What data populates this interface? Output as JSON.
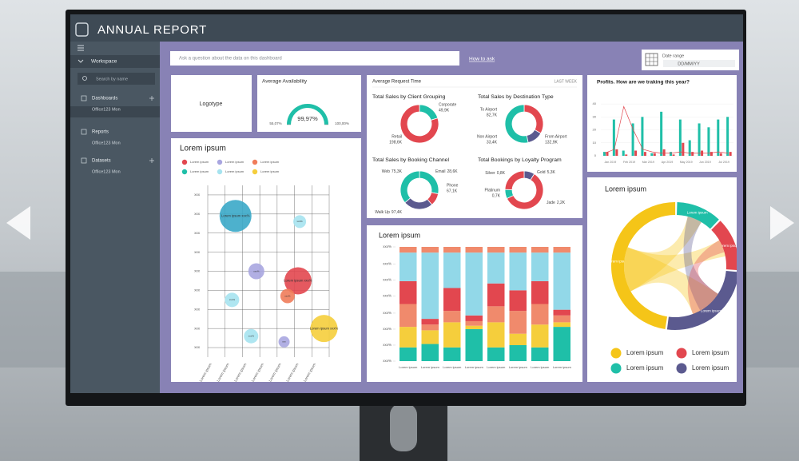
{
  "header": {
    "title": "ANNUAL REPORT"
  },
  "sidebar": {
    "workspace": "Workspace",
    "search": "Search by name",
    "sections": [
      {
        "title": "Dashboards",
        "item": "Office123 Mon"
      },
      {
        "title": "Reports",
        "item": "Office123 Mon"
      },
      {
        "title": "Datasets",
        "item": "Office123 Mon"
      }
    ]
  },
  "toolbar": {
    "question": "Ask a question about the data on this dashboard",
    "how_to_ask": "How to ask",
    "date_label": "Date range",
    "date_value": "DD/MM/YY"
  },
  "logo": "Logotype",
  "availability": {
    "title": "Average Availability",
    "value": 99.97,
    "value_label": "99,97%",
    "min": 55.07,
    "min_label": "55,07%",
    "max": 100,
    "max_label": "100,00%",
    "color": "#1fbfa8"
  },
  "request_time": {
    "title": "Average Request Time",
    "period": "LAST WEEK",
    "donuts": [
      {
        "title": "Total Sales by Client Grouping",
        "slices": [
          {
            "label": "Corporate",
            "value": 49.9,
            "value_label": "49,9K",
            "color": "#1fbfa8"
          },
          {
            "label": "Retail",
            "value": 198.6,
            "value_label": "198,6K",
            "color": "#e2474f"
          }
        ]
      },
      {
        "title": "Total Sales by Destination Type",
        "slices": [
          {
            "label": "To Airport",
            "value": 82.7,
            "value_label": "82,7K",
            "color": "#e2474f"
          },
          {
            "label": "Non Airport",
            "value": 33.4,
            "value_label": "33,4K",
            "color": "#5b5a8f"
          },
          {
            "label": "From Airport",
            "value": 132.9,
            "value_label": "132,9K",
            "color": "#1fbfa8"
          }
        ]
      },
      {
        "title": "Total Sales by Booking Channel",
        "slices": [
          {
            "label": "Web",
            "value": 75.3,
            "value_label": "75,3K",
            "color": "#1fbfa8"
          },
          {
            "label": "Email",
            "value": 28.6,
            "value_label": "28,6K",
            "color": "#e2474f"
          },
          {
            "label": "Phone",
            "value": 67.1,
            "value_label": "67,1K",
            "color": "#5b5a8f"
          },
          {
            "label": "Walk Up",
            "value": 97.4,
            "value_label": "97,4K",
            "color": "#1fbfa8"
          }
        ]
      },
      {
        "title": "Total Bookings by Loyalty Program",
        "slices": [
          {
            "label": "Silver",
            "value": 0.8,
            "value_label": "0,8K",
            "color": "#5b5a8f"
          },
          {
            "label": "Gold",
            "value": 5.3,
            "value_label": "5,3K",
            "color": "#e2474f"
          },
          {
            "label": "Platinum",
            "value": 0.7,
            "value_label": "0,7K",
            "color": "#1fbfa8"
          },
          {
            "label": "Jade",
            "value": 2.2,
            "value_label": "2,2K",
            "color": "#e2474f"
          }
        ]
      }
    ]
  },
  "profits": {
    "type": "bar",
    "title": "Profits. How are we traking this year?",
    "categories": [
      "Jan 2019",
      "Feb 2019",
      "Mar 2019",
      "Apr 2019",
      "May 2019",
      "Jun 2019",
      "Jul 2019"
    ],
    "series": [
      {
        "color": "#1fbfa8",
        "values": [
          3,
          28,
          4,
          25,
          30,
          2,
          34,
          3,
          28,
          12,
          25,
          22,
          28,
          30
        ]
      },
      {
        "color": "#e2474f",
        "values": [
          3,
          5,
          1,
          4,
          3,
          2,
          5,
          1,
          10,
          3,
          4,
          3,
          2,
          3
        ]
      }
    ],
    "line": {
      "color": "#e2474f",
      "values": [
        2,
        5,
        38,
        20,
        5,
        3,
        2,
        2,
        3,
        2,
        2,
        2,
        3,
        2
      ]
    },
    "ylim": [
      0,
      45
    ],
    "yticks": [
      0,
      10,
      20,
      30,
      40
    ]
  },
  "bubbles": {
    "type": "scatter",
    "title": "Lorem ipsum",
    "legend": [
      {
        "label": "Lorem ipsum",
        "color": "#e2474f"
      },
      {
        "label": "Lorem ipsum",
        "color": "#1fbfa8"
      },
      {
        "label": "Lorem ipsum",
        "color": "#a9a6e0"
      },
      {
        "label": "Lorem ipsum",
        "color": "#a6e3ef"
      },
      {
        "label": "Lorem ipsum",
        "color": "#f07c5a"
      },
      {
        "label": "Lorem ipsum",
        "color": "#f5ce3c"
      }
    ],
    "points": [
      {
        "x": 1.6,
        "y": 7.4,
        "size": 10,
        "color": "#3aa8c8",
        "label": "Lorem ipsum xxx%"
      },
      {
        "x": 5.3,
        "y": 7.1,
        "size": 4,
        "color": "#a6e3ef",
        "label": "xxx%"
      },
      {
        "x": 2.8,
        "y": 4.5,
        "size": 5,
        "color": "#a9a6e0",
        "label": "xxx%"
      },
      {
        "x": 5.2,
        "y": 4.0,
        "size": 8.5,
        "color": "#e2474f",
        "label": "Lorem ipsum xxx%"
      },
      {
        "x": 4.6,
        "y": 3.2,
        "size": 4.5,
        "color": "#f07c5a",
        "label": "xxx%"
      },
      {
        "x": 1.4,
        "y": 3.0,
        "size": 4.5,
        "color": "#a6e3ef",
        "label": "xxx%"
      },
      {
        "x": 6.7,
        "y": 1.5,
        "size": 8.5,
        "color": "#f5ce3c",
        "label": "Lorem ipsum xxx%"
      },
      {
        "x": 2.5,
        "y": 1.1,
        "size": 4.5,
        "color": "#a6e3ef",
        "label": "xxx%"
      },
      {
        "x": 4.4,
        "y": 0.8,
        "size": 3.5,
        "color": "#a9a6e0",
        "label": "xxx"
      }
    ],
    "categories": [
      "Lorem ipsum",
      "Lorem ipsum",
      "Lorem ipsum",
      "Lorem ipsum",
      "Lorem ipsum",
      "Lorem ipsum",
      "Lorem ipsum"
    ],
    "xlim": [
      0,
      7
    ],
    "ylim": [
      0,
      9
    ],
    "yticks": [
      {
        "value": 0.5,
        "label": "xxx"
      },
      {
        "value": 1.5,
        "label": "xxx"
      },
      {
        "value": 2.5,
        "label": "xxx"
      },
      {
        "value": 3.5,
        "label": "xxx"
      },
      {
        "value": 4.5,
        "label": "xxx"
      },
      {
        "value": 5.5,
        "label": "xxx"
      },
      {
        "value": 6.5,
        "label": "xxx"
      },
      {
        "value": 7.5,
        "label": "xxx"
      },
      {
        "value": 8.5,
        "label": "xxx"
      }
    ]
  },
  "stacked": {
    "type": "bar",
    "title": "Lorem ipsum",
    "categories": [
      "Lorem ipsum",
      "Lorem ipsum",
      "Lorem ipsum",
      "Lorem ipsum",
      "Lorem ipsum",
      "Lorem ipsum",
      "Lorem ipsum",
      "Lorem ipsum"
    ],
    "series": [
      {
        "color": "#1fbfa8",
        "values": [
          12,
          15,
          12,
          28,
          12,
          14,
          12,
          30
        ]
      },
      {
        "color": "#f5ce3c",
        "values": [
          18,
          12,
          22,
          3,
          22,
          10,
          20,
          4
        ]
      },
      {
        "color": "#f08a6c",
        "values": [
          20,
          5,
          10,
          4,
          14,
          20,
          18,
          6
        ]
      },
      {
        "color": "#e2474f",
        "values": [
          20,
          5,
          20,
          5,
          20,
          18,
          20,
          5
        ]
      },
      {
        "color": "#92d8e8",
        "values": [
          25,
          58,
          31,
          55,
          27,
          33,
          25,
          50
        ]
      },
      {
        "color": "#f08a6c",
        "values": [
          5,
          5,
          5,
          5,
          5,
          5,
          5,
          5
        ]
      }
    ],
    "ylim": [
      0,
      100
    ],
    "yticks": [
      {
        "value": 0,
        "label": "xxx%"
      },
      {
        "value": 14,
        "label": "xxx%"
      },
      {
        "value": 28,
        "label": "xxx%"
      },
      {
        "value": 42,
        "label": "xxx%"
      },
      {
        "value": 57,
        "label": "xxx%"
      },
      {
        "value": 71,
        "label": "xxx%"
      },
      {
        "value": 85,
        "label": "xxx%"
      },
      {
        "value": 100,
        "label": "xxx%"
      }
    ]
  },
  "chord": {
    "type": "pie",
    "title": "Lorem ipsum",
    "segments": [
      {
        "label": "Lorem ipsum",
        "value": 48,
        "color": "#f5c518"
      },
      {
        "label": "Lorem ipsum",
        "value": 12,
        "color": "#1fbfa8"
      },
      {
        "label": "Lorem ipsum",
        "value": 14,
        "color": "#e2474f"
      },
      {
        "label": "Lorem ipsum",
        "value": 26,
        "color": "#5b5a8f"
      }
    ],
    "legend": [
      {
        "label": "Lorem ipsum",
        "color": "#f5c518"
      },
      {
        "label": "Lorem ipsum",
        "color": "#e2474f"
      },
      {
        "label": "Lorem ipsum",
        "color": "#1fbfa8"
      },
      {
        "label": "Lorem ipsum",
        "color": "#5b5a8f"
      }
    ]
  }
}
